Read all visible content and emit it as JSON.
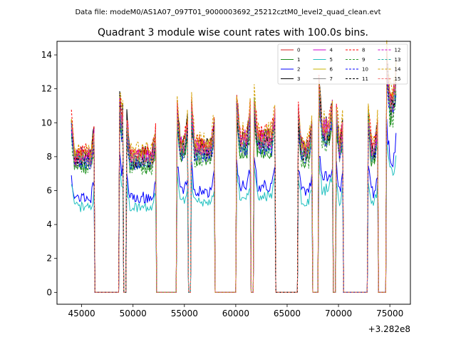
{
  "chart_data": {
    "type": "line",
    "suptitle": "Data file: modeM0/AS1A07_097T01_9000003692_25212cztM0_level2_quad_clean.evt",
    "title": "Quadrant 3 module wise count rates with 100.0s bins.",
    "xlabel": "",
    "ylabel": "",
    "x_offset_label": "+3.282e8",
    "xlim": [
      42600,
      77000
    ],
    "ylim": [
      -0.7,
      14.8
    ],
    "xticks": [
      45000,
      50000,
      55000,
      60000,
      65000,
      70000,
      75000
    ],
    "xtick_labels": [
      "45000",
      "50000",
      "55000",
      "60000",
      "65000",
      "70000",
      "75000"
    ],
    "yticks": [
      0,
      2,
      4,
      6,
      8,
      10,
      12,
      14
    ],
    "ytick_labels": [
      "0",
      "2",
      "4",
      "6",
      "8",
      "10",
      "12",
      "14"
    ],
    "grid": false,
    "legend_position": "top-right",
    "legend_columns": 4,
    "bin_seconds": 100,
    "segments": [
      {
        "start": 44000,
        "end": 46200,
        "level": 8.0
      },
      {
        "start": 48700,
        "end": 49000,
        "level": 9.0
      },
      {
        "start": 49400,
        "end": 52200,
        "level": 8.0
      },
      {
        "start": 54300,
        "end": 55300,
        "level": 8.6
      },
      {
        "start": 55700,
        "end": 57900,
        "level": 8.5
      },
      {
        "start": 60100,
        "end": 61400,
        "level": 9.0
      },
      {
        "start": 61800,
        "end": 63800,
        "level": 9.0
      },
      {
        "start": 66100,
        "end": 67400,
        "level": 8.4
      },
      {
        "start": 68100,
        "end": 69400,
        "level": 9.6
      },
      {
        "start": 69800,
        "end": 70400,
        "level": 8.4
      },
      {
        "start": 72900,
        "end": 73800,
        "level": 8.4
      },
      {
        "start": 74700,
        "end": 75600,
        "level": 11.2
      }
    ],
    "gaps": [
      {
        "start": 46400,
        "end": 48500
      },
      {
        "start": 49100,
        "end": 49300
      },
      {
        "start": 52300,
        "end": 54200
      },
      {
        "start": 55400,
        "end": 55600
      },
      {
        "start": 58000,
        "end": 60000
      },
      {
        "start": 61500,
        "end": 61700
      },
      {
        "start": 63900,
        "end": 66000
      },
      {
        "start": 67500,
        "end": 68000
      },
      {
        "start": 70500,
        "end": 72800
      },
      {
        "start": 73900,
        "end": 74600
      }
    ],
    "series": [
      {
        "name": "0",
        "color": "#d62020",
        "dash": "solid",
        "factor": 1.0
      },
      {
        "name": "1",
        "color": "#1a8a1a",
        "dash": "solid",
        "factor": 0.93
      },
      {
        "name": "2",
        "color": "#0000ff",
        "dash": "solid",
        "factor": 0.7
      },
      {
        "name": "3",
        "color": "#000000",
        "dash": "solid",
        "factor": 1.02
      },
      {
        "name": "4",
        "color": "#cc00cc",
        "dash": "solid",
        "factor": 1.01
      },
      {
        "name": "5",
        "color": "#20c0c0",
        "dash": "solid",
        "factor": 0.63
      },
      {
        "name": "6",
        "color": "#c8b400",
        "dash": "solid",
        "factor": 1.0
      },
      {
        "name": "7",
        "color": "#888888",
        "dash": "solid",
        "factor": 0.96
      },
      {
        "name": "8",
        "color": "#ff0000",
        "dash": "dashed",
        "factor": 1.04
      },
      {
        "name": "9",
        "color": "#2a9a2a",
        "dash": "dashed",
        "factor": 0.92
      },
      {
        "name": "10",
        "color": "#0000ff",
        "dash": "dashed",
        "factor": 0.95
      },
      {
        "name": "11",
        "color": "#000000",
        "dash": "dashed",
        "factor": 0.97
      },
      {
        "name": "12",
        "color": "#cc00cc",
        "dash": "dashed",
        "factor": 0.99
      },
      {
        "name": "13",
        "color": "#20b0a0",
        "dash": "dashed",
        "factor": 0.97
      },
      {
        "name": "14",
        "color": "#d4a000",
        "dash": "dashed",
        "factor": 1.06
      },
      {
        "name": "15",
        "color": "#f07070",
        "dash": "dashed",
        "factor": 1.0
      }
    ]
  }
}
